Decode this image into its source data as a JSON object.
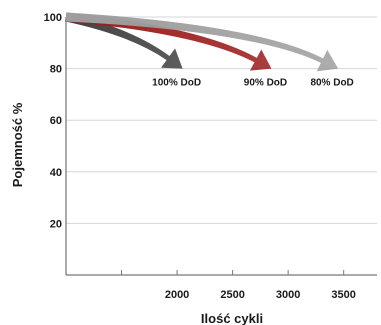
{
  "chart_data": {
    "type": "line",
    "xlabel": "Ilość cykli",
    "ylabel": "Pojemność %",
    "xlim": [
      1000,
      3800
    ],
    "ylim": [
      0,
      100
    ],
    "x_ticks": [
      2000,
      2500,
      3000,
      3500
    ],
    "y_ticks": [
      20,
      40,
      60,
      80,
      100
    ],
    "grid": "horizontal",
    "series": [
      {
        "name": "100% DoD",
        "color": "#404040",
        "x": [
          1000,
          1600,
          2050
        ],
        "y": [
          100,
          94,
          80
        ]
      },
      {
        "name": "90% DoD",
        "color": "#9b1c1c",
        "x": [
          1000,
          2200,
          2850
        ],
        "y": [
          100,
          95,
          80
        ]
      },
      {
        "name": "80% DoD",
        "color": "#9e9e9e",
        "x": [
          1000,
          2700,
          3450
        ],
        "y": [
          100,
          96,
          80
        ]
      }
    ]
  }
}
